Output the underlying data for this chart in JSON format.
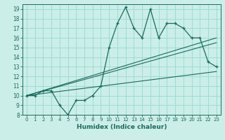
{
  "xlabel": "Humidex (Indice chaleur)",
  "bg_color": "#cceee8",
  "grid_color": "#99ddd5",
  "line_color": "#1a6b5e",
  "xlim": [
    -0.5,
    23.5
  ],
  "ylim": [
    8,
    19.5
  ],
  "xticks": [
    0,
    1,
    2,
    3,
    4,
    5,
    6,
    7,
    8,
    9,
    10,
    11,
    12,
    13,
    14,
    15,
    16,
    17,
    18,
    19,
    20,
    21,
    22,
    23
  ],
  "yticks": [
    8,
    9,
    10,
    11,
    12,
    13,
    14,
    15,
    16,
    17,
    18,
    19
  ],
  "main_x": [
    0,
    1,
    2,
    3,
    4,
    5,
    6,
    7,
    8,
    9,
    10,
    11,
    12,
    13,
    14,
    15,
    16,
    17,
    18,
    19,
    20,
    21,
    22,
    23
  ],
  "main_y": [
    10,
    10,
    10.5,
    10.5,
    9,
    8,
    9.5,
    9.5,
    10,
    11,
    15,
    17.5,
    19.2,
    17,
    16,
    19,
    16,
    17.5,
    17.5,
    17,
    16,
    16,
    13.5,
    13
  ],
  "line1_x": [
    0,
    23
  ],
  "line1_y": [
    10,
    16.0
  ],
  "line2_x": [
    0,
    23
  ],
  "line2_y": [
    10,
    12.5
  ],
  "line3_x": [
    0,
    23
  ],
  "line3_y": [
    10,
    15.5
  ]
}
